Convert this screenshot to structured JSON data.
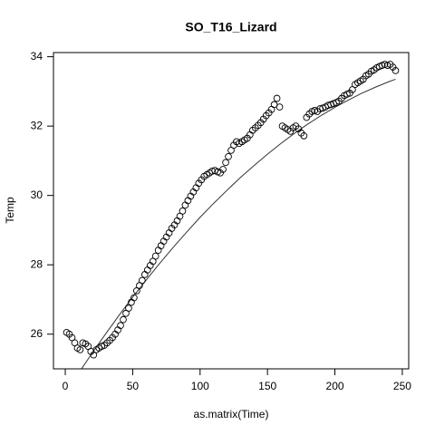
{
  "chart_data": {
    "type": "scatter",
    "title": "SO_T16_Lizard",
    "xlabel": "as.matrix(Time)",
    "ylabel": "Temp",
    "x": [
      1,
      3,
      5,
      7,
      9,
      11,
      13,
      15,
      17,
      19,
      21,
      23,
      25,
      27,
      29,
      31,
      33,
      35,
      37,
      39,
      41,
      43,
      45,
      47,
      49,
      51,
      53,
      55,
      57,
      59,
      61,
      63,
      65,
      67,
      69,
      71,
      73,
      75,
      77,
      79,
      81,
      83,
      85,
      87,
      89,
      91,
      93,
      95,
      97,
      99,
      101,
      103,
      105,
      107,
      109,
      111,
      113,
      115,
      117,
      119,
      121,
      123,
      125,
      127,
      129,
      131,
      133,
      135,
      137,
      139,
      141,
      143,
      145,
      147,
      149,
      151,
      153,
      155,
      157,
      159,
      161,
      163,
      165,
      167,
      169,
      171,
      173,
      175,
      177,
      179,
      181,
      183,
      185,
      187,
      189,
      191,
      193,
      195,
      197,
      199,
      201,
      203,
      205,
      207,
      209,
      211,
      213,
      215,
      217,
      219,
      221,
      223,
      225,
      227,
      229,
      231,
      233,
      235,
      237,
      239,
      241,
      243,
      245
    ],
    "values": [
      26.05,
      26.0,
      25.9,
      25.75,
      25.6,
      25.55,
      25.75,
      25.72,
      25.65,
      25.5,
      25.4,
      25.55,
      25.6,
      25.65,
      25.68,
      25.75,
      25.82,
      25.9,
      26.0,
      26.12,
      26.25,
      26.42,
      26.6,
      26.75,
      26.92,
      27.05,
      27.25,
      27.4,
      27.55,
      27.72,
      27.85,
      27.98,
      28.1,
      28.25,
      28.42,
      28.55,
      28.68,
      28.8,
      28.92,
      29.05,
      29.15,
      29.27,
      29.4,
      29.55,
      29.72,
      29.85,
      29.98,
      30.1,
      30.22,
      30.35,
      30.45,
      30.55,
      30.6,
      30.65,
      30.7,
      30.72,
      30.68,
      30.65,
      30.75,
      30.95,
      31.12,
      31.3,
      31.45,
      31.55,
      31.5,
      31.55,
      31.6,
      31.65,
      31.75,
      31.88,
      31.95,
      32.02,
      32.1,
      32.2,
      32.3,
      32.38,
      32.48,
      32.62,
      32.8,
      32.55,
      32.0,
      31.95,
      31.9,
      31.85,
      31.95,
      32.0,
      31.92,
      31.8,
      31.72,
      32.25,
      32.35,
      32.42,
      32.45,
      32.42,
      32.5,
      32.52,
      32.55,
      32.6,
      32.62,
      32.65,
      32.68,
      32.72,
      32.8,
      32.88,
      32.92,
      32.95,
      33.05,
      33.2,
      33.25,
      33.3,
      33.35,
      33.45,
      33.5,
      33.58,
      33.62,
      33.68,
      33.72,
      33.75,
      33.78,
      33.75,
      33.78,
      33.7,
      33.6
    ],
    "color": "#000000",
    "fit": {
      "x": [
        1,
        10,
        20,
        30,
        40,
        50,
        60,
        70,
        80,
        90,
        100,
        110,
        120,
        130,
        140,
        150,
        160,
        170,
        180,
        190,
        200,
        210,
        220,
        230,
        240,
        245
      ],
      "values": [
        24.35,
        24.88,
        25.46,
        26.01,
        26.55,
        27.07,
        27.56,
        28.04,
        28.5,
        28.94,
        29.37,
        29.77,
        30.15,
        30.52,
        30.86,
        31.19,
        31.5,
        31.79,
        32.06,
        32.31,
        32.54,
        32.75,
        32.95,
        33.12,
        33.28,
        33.35
      ],
      "color": "#333333"
    },
    "xlim": [
      -8.76,
      254.76
    ],
    "ylim": [
      25.0,
      34.12
    ],
    "xticks": [
      0,
      50,
      100,
      150,
      200,
      250
    ],
    "yticks": [
      26,
      28,
      30,
      32,
      34
    ]
  }
}
